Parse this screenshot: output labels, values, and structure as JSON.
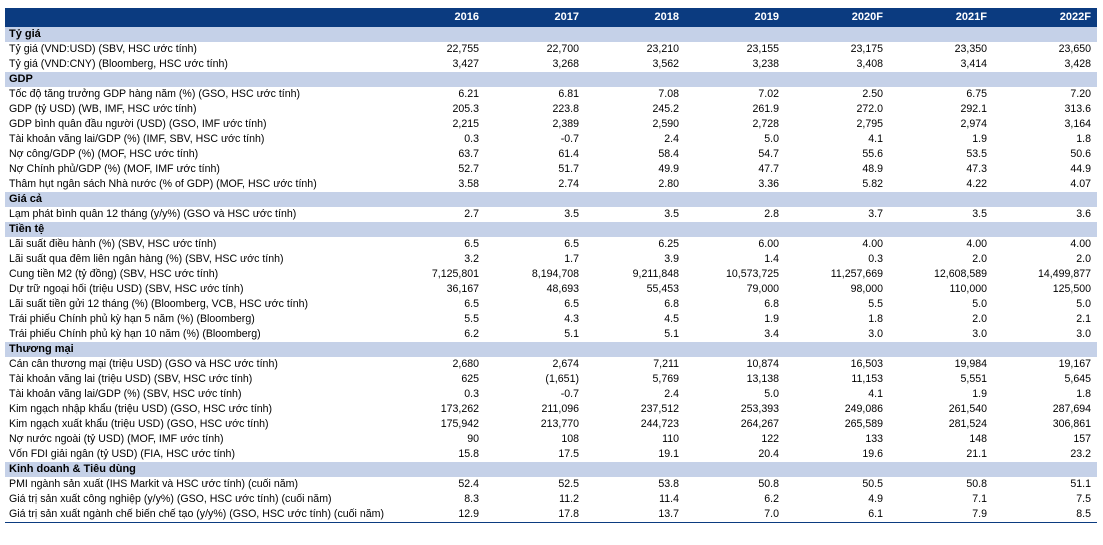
{
  "table": {
    "columns": [
      "",
      "2016",
      "2017",
      "2018",
      "2019",
      "2020F",
      "2021F",
      "2022F"
    ],
    "sections": [
      {
        "title": "Tỷ giá",
        "rows": [
          {
            "label": "Tỷ giá (VND:USD) (SBV, HSC ước tính)",
            "values": [
              "22,755",
              "22,700",
              "23,210",
              "23,155",
              "23,175",
              "23,350",
              "23,650"
            ]
          },
          {
            "label": "Tỷ giá (VND:CNY) (Bloomberg, HSC ước tính)",
            "values": [
              "3,427",
              "3,268",
              "3,562",
              "3,238",
              "3,408",
              "3,414",
              "3,428"
            ]
          }
        ]
      },
      {
        "title": "GDP",
        "rows": [
          {
            "label": "Tốc độ tăng trưởng GDP hàng năm (%) (GSO, HSC ước tính)",
            "values": [
              "6.21",
              "6.81",
              "7.08",
              "7.02",
              "2.50",
              "6.75",
              "7.20"
            ]
          },
          {
            "label": "GDP (tỷ USD) (WB, IMF, HSC ước tính)",
            "values": [
              "205.3",
              "223.8",
              "245.2",
              "261.9",
              "272.0",
              "292.1",
              "313.6"
            ]
          },
          {
            "label": "GDP bình quân đầu người (USD) (GSO, IMF ước tính)",
            "values": [
              "2,215",
              "2,389",
              "2,590",
              "2,728",
              "2,795",
              "2,974",
              "3,164"
            ]
          },
          {
            "label": "Tài khoản vãng lai/GDP (%) (IMF, SBV, HSC ước tính)",
            "values": [
              "0.3",
              "-0.7",
              "2.4",
              "5.0",
              "4.1",
              "1.9",
              "1.8"
            ]
          },
          {
            "label": "Nợ công/GDP (%) (MOF, HSC ước tính)",
            "values": [
              "63.7",
              "61.4",
              "58.4",
              "54.7",
              "55.6",
              "53.5",
              "50.6"
            ]
          },
          {
            "label": "Nợ Chính phủ/GDP (%) (MOF, IMF ước tính)",
            "values": [
              "52.7",
              "51.7",
              "49.9",
              "47.7",
              "48.9",
              "47.3",
              "44.9"
            ]
          },
          {
            "label": "Thâm hụt ngân sách Nhà nước (% of GDP) (MOF, HSC ước tính)",
            "values": [
              "3.58",
              "2.74",
              "2.80",
              "3.36",
              "5.82",
              "4.22",
              "4.07"
            ]
          }
        ]
      },
      {
        "title": "Giá cả",
        "rows": [
          {
            "label": "Lạm phát bình quân 12 tháng (y/y%) (GSO và HSC ước tính)",
            "values": [
              "2.7",
              "3.5",
              "3.5",
              "2.8",
              "3.7",
              "3.5",
              "3.6"
            ]
          }
        ]
      },
      {
        "title": "Tiền tệ",
        "rows": [
          {
            "label": "Lãi suất điều hành (%) (SBV, HSC ước tính)",
            "values": [
              "6.5",
              "6.5",
              "6.25",
              "6.00",
              "4.00",
              "4.00",
              "4.00"
            ]
          },
          {
            "label": "Lãi suất qua đêm liên ngân hàng (%) (SBV, HSC ước tính)",
            "values": [
              "3.2",
              "1.7",
              "3.9",
              "1.4",
              "0.3",
              "2.0",
              "2.0"
            ]
          },
          {
            "label": "Cung tiền M2 (tỷ đồng) (SBV, HSC ước tính)",
            "values": [
              "7,125,801",
              "8,194,708",
              "9,211,848",
              "10,573,725",
              "11,257,669",
              "12,608,589",
              "14,499,877"
            ]
          },
          {
            "label": "Dự trữ ngoại hối (triệu USD) (SBV, HSC ước tính)",
            "values": [
              "36,167",
              "48,693",
              "55,453",
              "79,000",
              "98,000",
              "110,000",
              "125,500"
            ]
          },
          {
            "label": "Lãi suất tiền gửi 12 tháng (%) (Bloomberg, VCB, HSC ước tính)",
            "values": [
              "6.5",
              "6.5",
              "6.8",
              "6.8",
              "5.5",
              "5.0",
              "5.0"
            ]
          },
          {
            "label": "Trái phiếu Chính phủ kỳ hạn 5 năm (%) (Bloomberg)",
            "values": [
              "5.5",
              "4.3",
              "4.5",
              "1.9",
              "1.8",
              "2.0",
              "2.1"
            ]
          },
          {
            "label": "Trái phiếu Chính phủ kỳ hạn 10 năm (%) (Bloomberg)",
            "values": [
              "6.2",
              "5.1",
              "5.1",
              "3.4",
              "3.0",
              "3.0",
              "3.0"
            ]
          }
        ]
      },
      {
        "title": "Thương mại",
        "rows": [
          {
            "label": "Cán cân thương mại (triệu USD) (GSO và HSC ước tính)",
            "values": [
              "2,680",
              "2,674",
              "7,211",
              "10,874",
              "16,503",
              "19,984",
              "19,167"
            ]
          },
          {
            "label": "Tài khoản vãng lai (triệu USD) (SBV, HSC ước tính)",
            "values": [
              "625",
              "(1,651)",
              "5,769",
              "13,138",
              "11,153",
              "5,551",
              "5,645"
            ]
          },
          {
            "label": "Tài khoản vãng lai/GDP (%) (SBV, HSC ước tính)",
            "values": [
              "0.3",
              "-0.7",
              "2.4",
              "5.0",
              "4.1",
              "1.9",
              "1.8"
            ]
          },
          {
            "label": "Kim ngạch nhập khẩu (triệu USD) (GSO, HSC ước tính)",
            "values": [
              "173,262",
              "211,096",
              "237,512",
              "253,393",
              "249,086",
              "261,540",
              "287,694"
            ]
          },
          {
            "label": "Kim ngạch xuất khẩu (triệu USD) (GSO, HSC ước tính)",
            "values": [
              "175,942",
              "213,770",
              "244,723",
              "264,267",
              "265,589",
              "281,524",
              "306,861"
            ]
          },
          {
            "label": "Nợ nước ngoài (tỷ USD) (MOF, IMF ước tính)",
            "values": [
              "90",
              "108",
              "110",
              "122",
              "133",
              "148",
              "157"
            ]
          },
          {
            "label": "Vốn FDI giải ngân (tỷ USD) (FIA, HSC ước tính)",
            "values": [
              "15.8",
              "17.5",
              "19.1",
              "20.4",
              "19.6",
              "21.1",
              "23.2"
            ]
          }
        ]
      },
      {
        "title": "Kinh doanh & Tiêu dùng",
        "rows": [
          {
            "label": "PMI ngành sản xuất (IHS Markit và HSC ước tính) (cuối năm)",
            "values": [
              "52.4",
              "52.5",
              "53.8",
              "50.8",
              "50.5",
              "50.8",
              "51.1"
            ]
          },
          {
            "label": "Giá trị sản xuất công nghiệp (y/y%) (GSO, HSC ước tính) (cuối năm)",
            "values": [
              "8.3",
              "11.2",
              "11.4",
              "6.2",
              "4.9",
              "7.1",
              "7.5"
            ]
          },
          {
            "label": "Giá trị sản xuất ngành chế biến chế tạo (y/y%) (GSO, HSC ước tính) (cuối năm)",
            "values": [
              "12.9",
              "17.8",
              "13.7",
              "7.0",
              "6.1",
              "7.9",
              "8.5"
            ]
          }
        ]
      }
    ]
  }
}
